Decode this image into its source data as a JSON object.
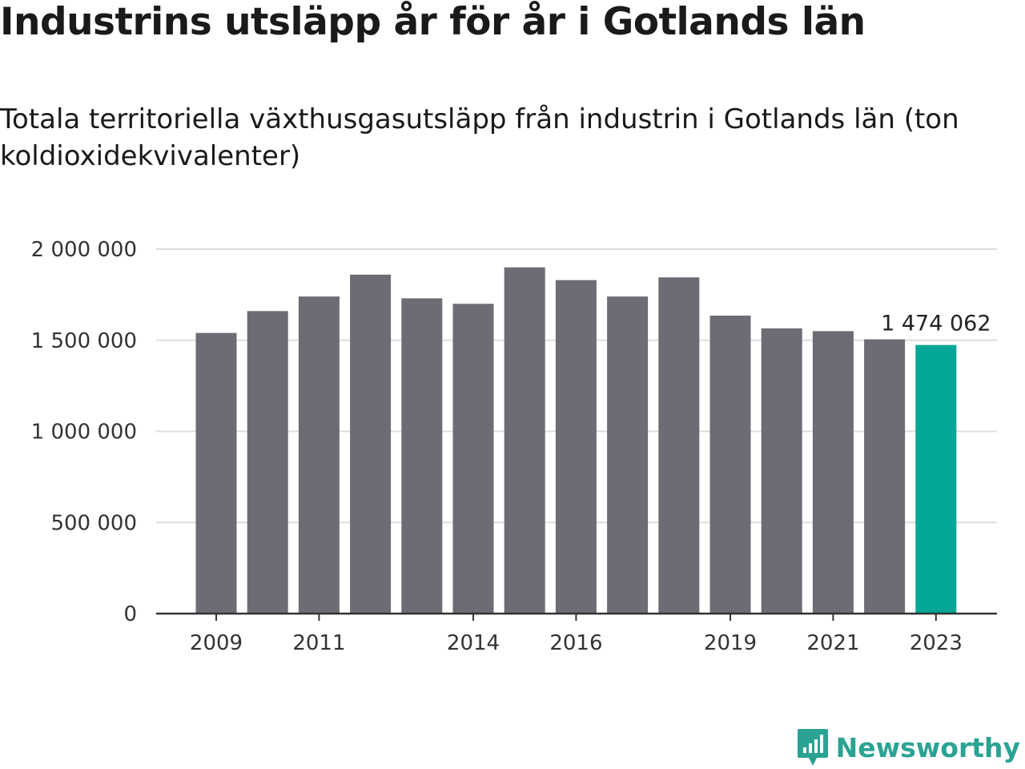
{
  "header": {
    "title": "Industrins utsläpp år för år i Gotlands län",
    "subtitle": "Totala territoriella växthusgasutsläpp från industrin i Gotlands län (ton koldioxidekvivalenter)"
  },
  "brand": {
    "name": "Newsworthy",
    "icon": "newsworthy-logo-icon",
    "color": "#2aa393"
  },
  "chart_data": {
    "type": "bar",
    "title": "Industrins utsläpp år för år i Gotlands län",
    "subtitle": "Totala territoriella växthusgasutsläpp från industrin i Gotlands län (ton koldioxidekvivalenter)",
    "categories": [
      "2009",
      "2010",
      "2011",
      "2012",
      "2013",
      "2014",
      "2015",
      "2016",
      "2017",
      "2018",
      "2019",
      "2020",
      "2021",
      "2022",
      "2023"
    ],
    "values": [
      1540000,
      1660000,
      1740000,
      1860000,
      1730000,
      1700000,
      1900000,
      1830000,
      1740000,
      1845000,
      1635000,
      1565000,
      1550000,
      1505000,
      1474062
    ],
    "x_tick_labels": [
      "2009",
      "2011",
      "2014",
      "2016",
      "2019",
      "2021",
      "2023"
    ],
    "y_ticks": [
      0,
      500000,
      1000000,
      1500000,
      2000000
    ],
    "y_tick_labels": [
      "0",
      "500 000",
      "1 000 000",
      "1 500 000",
      "2 000 000"
    ],
    "ylim": [
      0,
      2000000
    ],
    "xlabel": "",
    "ylabel": "",
    "highlight": {
      "category": "2023",
      "label": "1 474 062"
    },
    "colors": {
      "bar": "#6d6c74",
      "highlight": "#03a697",
      "grid": "#dddddd",
      "axis": "#333333"
    },
    "grid": true,
    "legend": false
  }
}
